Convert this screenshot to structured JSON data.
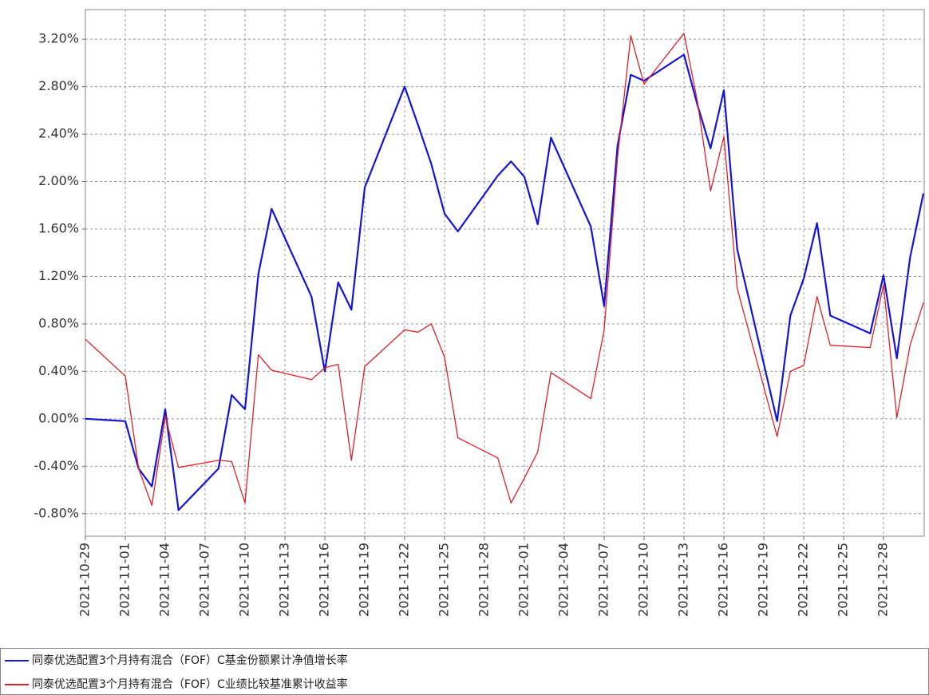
{
  "chart_data": {
    "type": "line",
    "x": [
      "2021-10-29",
      "2021-11-01",
      "2021-11-02",
      "2021-11-03",
      "2021-11-04",
      "2021-11-05",
      "2021-11-08",
      "2021-11-09",
      "2021-11-10",
      "2021-11-11",
      "2021-11-12",
      "2021-11-15",
      "2021-11-16",
      "2021-11-17",
      "2021-11-18",
      "2021-11-19",
      "2021-11-22",
      "2021-11-23",
      "2021-11-24",
      "2021-11-25",
      "2021-11-26",
      "2021-11-29",
      "2021-11-30",
      "2021-12-01",
      "2021-12-02",
      "2021-12-03",
      "2021-12-06",
      "2021-12-07",
      "2021-12-08",
      "2021-12-09",
      "2021-12-10",
      "2021-12-13",
      "2021-12-14",
      "2021-12-15",
      "2021-12-16",
      "2021-12-17",
      "2021-12-20",
      "2021-12-21",
      "2021-12-22",
      "2021-12-23",
      "2021-12-24",
      "2021-12-27",
      "2021-12-28",
      "2021-12-29",
      "2021-12-30",
      "2021-12-31"
    ],
    "series": [
      {
        "name": "同泰优选配置3个月持有混合（FOF）C基金份额累计净值增长率",
        "color": "#1414d2",
        "width": 2.2,
        "values": [
          0.0,
          -0.02,
          -0.42,
          -0.57,
          0.08,
          -0.77,
          -0.42,
          0.2,
          0.08,
          1.22,
          1.77,
          1.03,
          0.4,
          1.15,
          0.92,
          1.95,
          2.8,
          2.48,
          2.15,
          1.73,
          1.58,
          2.05,
          2.17,
          2.04,
          1.64,
          2.37,
          1.62,
          0.95,
          2.3,
          2.9,
          2.85,
          3.07,
          2.65,
          2.28,
          2.77,
          1.43,
          -0.02,
          0.87,
          1.18,
          1.65,
          0.87,
          0.72,
          1.21,
          0.51,
          1.36,
          1.9
        ]
      },
      {
        "name": "同泰优选配置3个月持有混合（FOF）C业绩比较基准累计收益率",
        "color": "#e0202a",
        "width": 1.3,
        "values": [
          0.67,
          0.36,
          -0.42,
          -0.73,
          0.02,
          -0.41,
          -0.35,
          -0.36,
          -0.71,
          0.54,
          0.41,
          0.33,
          0.43,
          0.46,
          -0.35,
          0.44,
          0.75,
          0.73,
          0.8,
          0.52,
          -0.16,
          -0.33,
          -0.71,
          -0.5,
          -0.28,
          0.39,
          0.17,
          0.75,
          2.2,
          3.23,
          2.82,
          3.25,
          2.68,
          1.92,
          2.38,
          1.1,
          -0.15,
          0.4,
          0.45,
          1.03,
          0.62,
          0.6,
          1.13,
          0.01,
          0.62,
          0.98
        ]
      }
    ],
    "xlim": [
      "2021-10-29",
      "2021-12-31"
    ],
    "xticks": [
      "2021-10-29",
      "2021-11-01",
      "2021-11-04",
      "2021-11-07",
      "2021-11-10",
      "2021-11-13",
      "2021-11-16",
      "2021-11-19",
      "2021-11-22",
      "2021-11-25",
      "2021-11-28",
      "2021-12-01",
      "2021-12-04",
      "2021-12-07",
      "2021-12-10",
      "2021-12-13",
      "2021-12-16",
      "2021-12-19",
      "2021-12-22",
      "2021-12-25",
      "2021-12-28"
    ],
    "ylim": [
      -0.99,
      3.45
    ],
    "yticks": [
      {
        "value": -0.8,
        "label": "-0.80%"
      },
      {
        "value": -0.4,
        "label": "-0.40%"
      },
      {
        "value": 0,
        "label": "0.00%"
      },
      {
        "value": 0.4,
        "label": "0.40%"
      },
      {
        "value": 0.8,
        "label": "0.80%"
      },
      {
        "value": 1.2,
        "label": "1.20%"
      },
      {
        "value": 1.6,
        "label": "1.60%"
      },
      {
        "value": 2.0,
        "label": "2.00%"
      },
      {
        "value": 2.4,
        "label": "2.40%"
      },
      {
        "value": 2.8,
        "label": "2.80%"
      },
      {
        "value": 3.2,
        "label": "3.20%"
      }
    ],
    "grid": true
  }
}
